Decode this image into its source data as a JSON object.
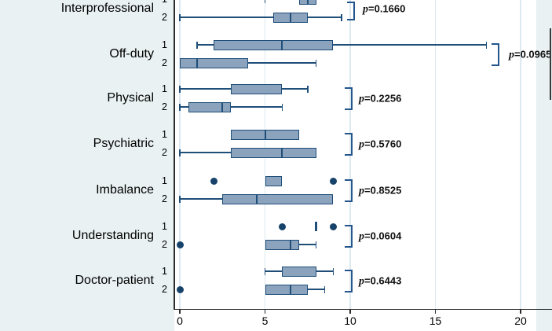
{
  "chart_data": {
    "type": "boxplot",
    "orientation": "horizontal",
    "title": "",
    "xlabel": "",
    "x_axis": {
      "ticks": [
        0,
        5,
        10,
        15,
        20
      ],
      "range": [
        0,
        20
      ],
      "grid": true
    },
    "row_ids": [
      "1",
      "2"
    ],
    "groups": [
      {
        "label": "Interprofessional",
        "p_text": "p=0.1660",
        "rows": [
          {
            "id": "1",
            "clipped_top": true,
            "whisker_low": 5,
            "q1": 7,
            "median": 7.5,
            "q3": 8,
            "whisker_high": 8,
            "outliers": []
          },
          {
            "id": "2",
            "whisker_low": 0,
            "q1": 5.5,
            "median": 6.5,
            "q3": 7.5,
            "whisker_high": 9.5,
            "outliers": []
          }
        ]
      },
      {
        "label": "Off-duty",
        "p_text": "p=0.0965",
        "rows": [
          {
            "id": "1",
            "whisker_low": 1,
            "q1": 2,
            "median": 6,
            "q3": 9,
            "whisker_high": 18,
            "outliers": []
          },
          {
            "id": "2",
            "whisker_low": 0,
            "q1": 0,
            "median": 1,
            "q3": 4,
            "whisker_high": 8,
            "outliers": []
          }
        ]
      },
      {
        "label": "Physical",
        "p_text": "p=0.2256",
        "rows": [
          {
            "id": "1",
            "whisker_low": 0,
            "q1": 3,
            "median": 3,
            "q3": 6,
            "whisker_high": 7.5,
            "outliers": []
          },
          {
            "id": "2",
            "whisker_low": 0,
            "q1": 0.5,
            "median": 2.5,
            "q3": 3,
            "whisker_high": 6,
            "outliers": []
          }
        ]
      },
      {
        "label": "Psychiatric",
        "p_text": "p=0.5760",
        "rows": [
          {
            "id": "1",
            "whisker_low": 3,
            "q1": 3,
            "median": 5,
            "q3": 7,
            "whisker_high": 7,
            "outliers": []
          },
          {
            "id": "2",
            "whisker_low": 0,
            "q1": 3,
            "median": 6,
            "q3": 8,
            "whisker_high": 8,
            "outliers": []
          }
        ]
      },
      {
        "label": "Imbalance",
        "p_text": "p=0.8525",
        "rows": [
          {
            "id": "1",
            "whisker_low": 5,
            "q1": 5,
            "median": 6,
            "q3": 6,
            "whisker_high": 6,
            "outliers": [
              2,
              9
            ]
          },
          {
            "id": "2",
            "whisker_low": 0,
            "q1": 2.5,
            "median": 4.5,
            "q3": 9,
            "whisker_high": 9,
            "outliers": []
          }
        ]
      },
      {
        "label": "Understanding",
        "p_text": "p=0.0604",
        "rows": [
          {
            "id": "1",
            "whisker_low": 8,
            "q1": 8,
            "median": 8,
            "q3": 8,
            "whisker_high": 8,
            "outliers": [
              6,
              9
            ]
          },
          {
            "id": "2",
            "whisker_low": 5,
            "q1": 5,
            "median": 6.5,
            "q3": 7,
            "whisker_high": 8,
            "outliers": [
              0
            ]
          }
        ]
      },
      {
        "label": "Doctor-patient",
        "p_text": "p=0.6443",
        "rows": [
          {
            "id": "1",
            "whisker_low": 5,
            "q1": 6,
            "median": 6,
            "q3": 8,
            "whisker_high": 9,
            "outliers": []
          },
          {
            "id": "2",
            "whisker_low": 5,
            "q1": 5,
            "median": 6.5,
            "q3": 7.5,
            "whisker_high": 8.5,
            "outliers": [
              0
            ]
          }
        ]
      }
    ],
    "colors": {
      "box_fill": "#8CA3BD",
      "box_border": "#1F4E79",
      "whisker": "#1F4E79",
      "outlier": "#17436B",
      "bracket": "#24558C",
      "grid": "#DDE9F0",
      "panel_bg": "#E9F1F2",
      "plot_bg": "#FFFFFF",
      "axis": "#2B2B2B",
      "text": "#000000"
    }
  }
}
